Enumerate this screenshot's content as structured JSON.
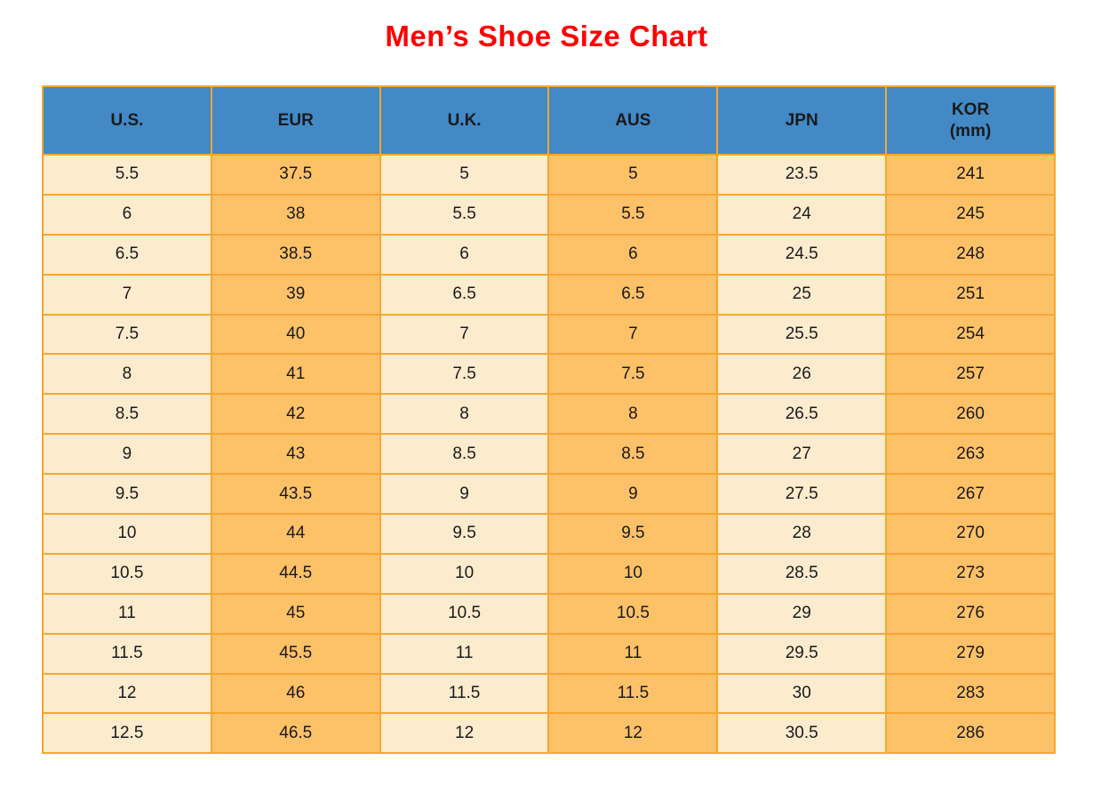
{
  "title": "Men’s Shoe Size Chart",
  "colors": {
    "title_color": "#fe0000",
    "header_bg": "#4289c6",
    "col_light": "#fdebce",
    "col_orange": "#fdc168",
    "border_color": "#f8a632",
    "text_color": "#1a1a1a"
  },
  "chart_data": {
    "type": "table",
    "title": "Men’s Shoe Size Chart",
    "legend_position": "none",
    "grid": "on",
    "columns": [
      {
        "id": "us",
        "label": "U.S.",
        "sublabel": ""
      },
      {
        "id": "eur",
        "label": "EUR",
        "sublabel": ""
      },
      {
        "id": "uk",
        "label": "U.K.",
        "sublabel": ""
      },
      {
        "id": "aus",
        "label": "AUS",
        "sublabel": ""
      },
      {
        "id": "jpn",
        "label": "JPN",
        "sublabel": ""
      },
      {
        "id": "kor",
        "label": "KOR",
        "sublabel": "(mm)"
      }
    ],
    "rows": [
      [
        "5.5",
        "37.5",
        "5",
        "5",
        "23.5",
        "241"
      ],
      [
        "6",
        "38",
        "5.5",
        "5.5",
        "24",
        "245"
      ],
      [
        "6.5",
        "38.5",
        "6",
        "6",
        "24.5",
        "248"
      ],
      [
        "7",
        "39",
        "6.5",
        "6.5",
        "25",
        "251"
      ],
      [
        "7.5",
        "40",
        "7",
        "7",
        "25.5",
        "254"
      ],
      [
        "8",
        "41",
        "7.5",
        "7.5",
        "26",
        "257"
      ],
      [
        "8.5",
        "42",
        "8",
        "8",
        "26.5",
        "260"
      ],
      [
        "9",
        "43",
        "8.5",
        "8.5",
        "27",
        "263"
      ],
      [
        "9.5",
        "43.5",
        "9",
        "9",
        "27.5",
        "267"
      ],
      [
        "10",
        "44",
        "9.5",
        "9.5",
        "28",
        "270"
      ],
      [
        "10.5",
        "44.5",
        "10",
        "10",
        "28.5",
        "273"
      ],
      [
        "11",
        "45",
        "10.5",
        "10.5",
        "29",
        "276"
      ],
      [
        "11.5",
        "45.5",
        "11",
        "11",
        "29.5",
        "279"
      ],
      [
        "12",
        "46",
        "11.5",
        "11.5",
        "30",
        "283"
      ],
      [
        "12.5",
        "46.5",
        "12",
        "12",
        "30.5",
        "286"
      ]
    ]
  }
}
